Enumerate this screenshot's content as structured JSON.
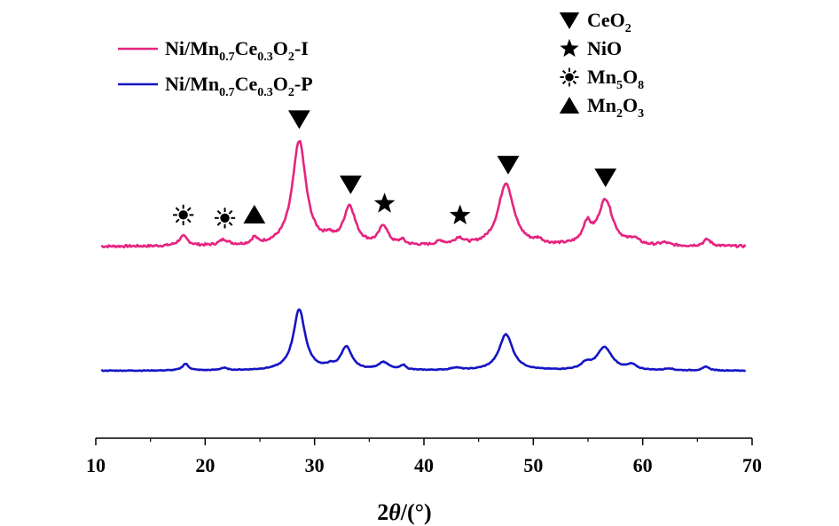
{
  "chart_data": {
    "type": "line",
    "title": "",
    "xlabel_prefix": "2",
    "xlabel_theta": "θ",
    "xlabel_suffix": "/(°)",
    "ylabel": "",
    "xlim": [
      10,
      70
    ],
    "xticks": [
      10,
      20,
      30,
      40,
      50,
      60,
      70
    ],
    "xtick_labels": [
      "10",
      "20",
      "30",
      "40",
      "50",
      "60",
      "70"
    ],
    "grid": false,
    "y_axis_shown": false,
    "legend_position": "top-left",
    "series": [
      {
        "name": "Ni/Mn0.7Ce0.3O2-I",
        "label_parts": [
          [
            "Ni/Mn",
            ""
          ],
          [
            "0.7",
            "sub"
          ],
          [
            "Ce",
            ""
          ],
          [
            "0.3",
            "sub"
          ],
          [
            "O",
            ""
          ],
          [
            "2",
            "sub"
          ],
          [
            "-I",
            ""
          ]
        ],
        "color": "#E6237F",
        "offset": 1,
        "peaks": [
          [
            18.0,
            0.05,
            0.5
          ],
          [
            21.7,
            0.03,
            0.5
          ],
          [
            24.5,
            0.035,
            0.3
          ],
          [
            28.6,
            0.55,
            0.75
          ],
          [
            31.3,
            0.03,
            0.4
          ],
          [
            33.2,
            0.2,
            0.65
          ],
          [
            36.3,
            0.1,
            0.5
          ],
          [
            38.0,
            0.025,
            0.3
          ],
          [
            41.5,
            0.02,
            0.4
          ],
          [
            43.2,
            0.035,
            0.5
          ],
          [
            47.5,
            0.33,
            0.85
          ],
          [
            50.5,
            0.02,
            0.4
          ],
          [
            54.9,
            0.1,
            0.45
          ],
          [
            56.6,
            0.24,
            0.8
          ],
          [
            59.2,
            0.03,
            0.5
          ],
          [
            62.0,
            0.015,
            0.5
          ],
          [
            65.9,
            0.035,
            0.4
          ]
        ]
      },
      {
        "name": "Ni/Mn0.7Ce0.3O2-P",
        "label_parts": [
          [
            "Ni/Mn",
            ""
          ],
          [
            "0.7",
            "sub"
          ],
          [
            "Ce",
            ""
          ],
          [
            "0.3",
            "sub"
          ],
          [
            "O",
            ""
          ],
          [
            "2",
            "sub"
          ],
          [
            "-P",
            ""
          ]
        ],
        "color": "#1515C4",
        "offset": 0,
        "peaks": [
          [
            18.2,
            0.035,
            0.35
          ],
          [
            21.7,
            0.012,
            0.4
          ],
          [
            28.6,
            0.32,
            0.65
          ],
          [
            31.4,
            0.015,
            0.4
          ],
          [
            32.9,
            0.12,
            0.6
          ],
          [
            36.3,
            0.04,
            0.6
          ],
          [
            38.1,
            0.025,
            0.3
          ],
          [
            42.9,
            0.012,
            0.5
          ],
          [
            47.5,
            0.19,
            0.75
          ],
          [
            54.8,
            0.03,
            0.5
          ],
          [
            56.5,
            0.12,
            0.85
          ],
          [
            59.0,
            0.025,
            0.5
          ],
          [
            62.4,
            0.01,
            0.4
          ],
          [
            65.8,
            0.02,
            0.35
          ]
        ]
      }
    ],
    "phase_markers": [
      {
        "symbol": "triangle-down",
        "phase": "CeO2",
        "x": 28.6
      },
      {
        "symbol": "triangle-down",
        "phase": "CeO2",
        "x": 33.3
      },
      {
        "symbol": "triangle-down",
        "phase": "CeO2",
        "x": 47.7
      },
      {
        "symbol": "triangle-down",
        "phase": "CeO2",
        "x": 56.6
      },
      {
        "symbol": "star",
        "phase": "NiO",
        "x": 36.4
      },
      {
        "symbol": "star",
        "phase": "NiO",
        "x": 43.3
      },
      {
        "symbol": "sun",
        "phase": "Mn5O8",
        "x": 18.0
      },
      {
        "symbol": "sun",
        "phase": "Mn5O8",
        "x": 21.8
      },
      {
        "symbol": "triangle-up",
        "phase": "Mn2O3",
        "x": 24.5
      }
    ],
    "symbol_legend": [
      {
        "symbol": "triangle-down",
        "label": "CeO2",
        "parts": [
          [
            "CeO",
            ""
          ],
          [
            "2",
            "sub"
          ]
        ]
      },
      {
        "symbol": "star",
        "label": "NiO",
        "parts": [
          [
            "NiO",
            ""
          ]
        ]
      },
      {
        "symbol": "sun",
        "label": "Mn5O8",
        "parts": [
          [
            "Mn",
            ""
          ],
          [
            "5",
            "sub"
          ],
          [
            "O",
            ""
          ],
          [
            "8",
            "sub"
          ]
        ]
      },
      {
        "symbol": "triangle-up",
        "label": "Mn2O3",
        "parts": [
          [
            "Mn",
            ""
          ],
          [
            "2",
            "sub"
          ],
          [
            "O",
            ""
          ],
          [
            "3",
            "sub"
          ]
        ]
      }
    ]
  }
}
